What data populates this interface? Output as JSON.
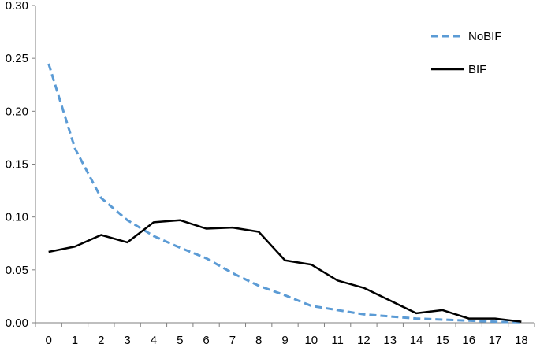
{
  "chart_data": {
    "type": "line",
    "title": "",
    "xlabel": "",
    "ylabel": "",
    "x": [
      0,
      1,
      2,
      3,
      4,
      5,
      6,
      7,
      8,
      9,
      10,
      11,
      12,
      13,
      14,
      15,
      16,
      17,
      18
    ],
    "xlim": [
      0,
      18
    ],
    "ylim": [
      0,
      0.3
    ],
    "yticks": [
      "0.00",
      "0.05",
      "0.10",
      "0.15",
      "0.20",
      "0.25",
      "0.30"
    ],
    "grid": false,
    "legend_position": "top-right",
    "series": [
      {
        "name": "NoBIF",
        "style": "dashed",
        "color": "#5b9bd5",
        "values": [
          0.245,
          0.165,
          0.118,
          0.097,
          0.082,
          0.071,
          0.061,
          0.047,
          0.035,
          0.026,
          0.016,
          0.012,
          0.008,
          0.006,
          0.004,
          0.003,
          0.002,
          0.001,
          0.0005
        ]
      },
      {
        "name": "BIF",
        "style": "solid",
        "color": "#000000",
        "values": [
          0.067,
          0.072,
          0.083,
          0.076,
          0.095,
          0.097,
          0.089,
          0.09,
          0.086,
          0.059,
          0.055,
          0.04,
          0.033,
          0.021,
          0.009,
          0.012,
          0.004,
          0.004,
          0.001
        ]
      }
    ]
  }
}
